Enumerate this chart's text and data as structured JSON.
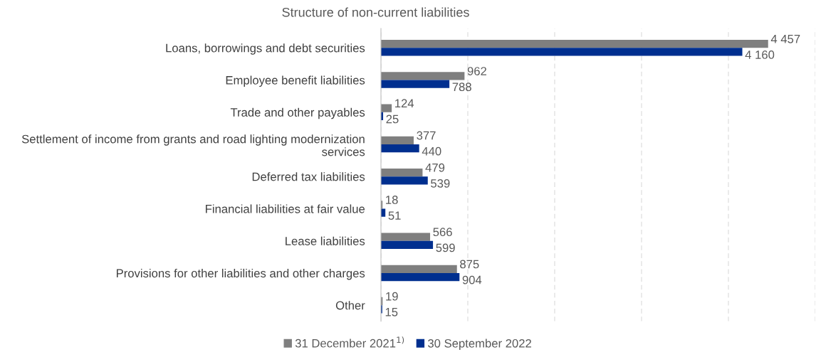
{
  "chart_data": {
    "type": "bar",
    "orientation": "horizontal",
    "title": "Structure of non-current liabilities",
    "categories": [
      "Loans, borrowings and debt securities",
      "Employee benefit liabilities",
      "Trade and other payables",
      "Settlement of income from grants and road lighting modernization\nservices",
      "Deferred tax liabilities",
      "Financial liabilities at fair value",
      "Lease liabilities",
      "Provisions for other liabilities and other charges",
      "Other"
    ],
    "series": [
      {
        "name": "31 December 2021$^{1)}$",
        "color": "#7f7f7f",
        "values": [
          4457,
          962,
          124,
          377,
          479,
          18,
          566,
          875,
          19
        ],
        "value_labels": [
          "4 457",
          "962",
          "124",
          "377",
          "479",
          "18",
          "566",
          "875",
          "19"
        ]
      },
      {
        "name": "30 September 2022",
        "color": "#002f8f",
        "values": [
          4160,
          788,
          25,
          440,
          539,
          51,
          599,
          904,
          15
        ],
        "value_labels": [
          "4 160",
          "788",
          "25",
          "440",
          "539",
          "51",
          "599",
          "904",
          "15"
        ]
      }
    ],
    "xlim": [
      0,
      5000
    ],
    "xticks": [
      {
        "value": 0,
        "label": null
      },
      {
        "value": 1000,
        "label": null
      },
      {
        "value": 2000,
        "label": null
      },
      {
        "value": 3000,
        "label": null
      },
      {
        "value": 4000,
        "label": null
      },
      {
        "value": 5000,
        "label": null
      }
    ],
    "tick_labels": "y",
    "grid": "x",
    "legend": "bottom"
  }
}
